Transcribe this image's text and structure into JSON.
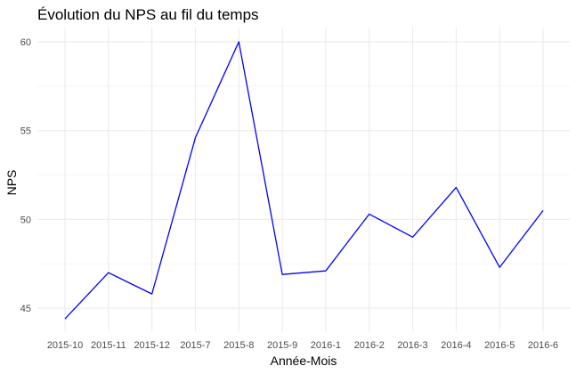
{
  "chart_data": {
    "type": "line",
    "title": "Évolution du NPS au fil du temps",
    "xlabel": "Année-Mois",
    "ylabel": "NPS",
    "categories": [
      "2015-10",
      "2015-11",
      "2015-12",
      "2015-7",
      "2015-8",
      "2015-9",
      "2016-1",
      "2016-2",
      "2016-3",
      "2016-4",
      "2016-5",
      "2016-6"
    ],
    "series": [
      {
        "values": [
          44.4,
          47.0,
          45.8,
          54.6,
          60.0,
          46.9,
          47.1,
          50.3,
          49.0,
          51.8,
          47.3,
          50.5
        ]
      }
    ],
    "ylim": [
      43.7,
      60.8
    ],
    "yticks": [
      45,
      50,
      55,
      60
    ],
    "grid": true,
    "line_color": "#0000ff",
    "grid_color": "#ebebeb"
  }
}
